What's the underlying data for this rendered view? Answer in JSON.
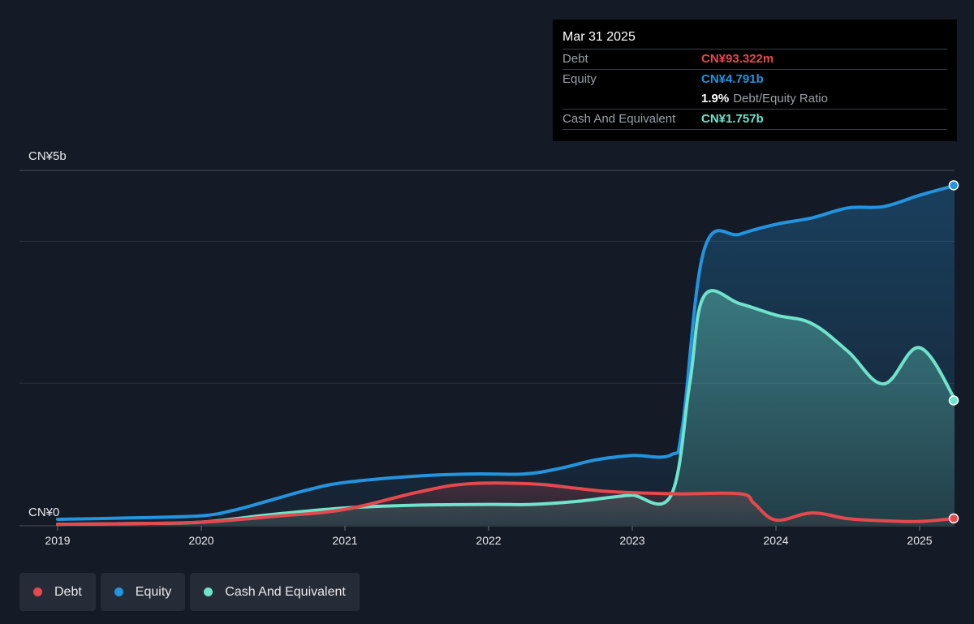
{
  "tooltip": {
    "date": "Mar 31 2025",
    "debt_label": "Debt",
    "debt_value": "CN¥93.322m",
    "equity_label": "Equity",
    "equity_value": "CN¥4.791b",
    "ratio_value": "1.9%",
    "ratio_label": "Debt/Equity Ratio",
    "cash_label": "Cash And Equivalent",
    "cash_value": "CN¥1.757b"
  },
  "legend": {
    "debt": "Debt",
    "equity": "Equity",
    "cash": "Cash And Equivalent"
  },
  "colors": {
    "debt": "#e5484d",
    "equity": "#2394df",
    "cash": "#6fe3cc",
    "background": "#151b26"
  },
  "chart_data": {
    "type": "area",
    "title": "",
    "xlabel": "",
    "ylabel": "",
    "ylim": [
      0,
      5
    ],
    "y_unit": "CN¥ billions",
    "y_tick_labels": [
      "CN¥0",
      "CN¥5b"
    ],
    "x_ticks": [
      2019,
      2020,
      2021,
      2022,
      2023,
      2024,
      2025
    ],
    "x_tick_labels": [
      "2019",
      "2020",
      "2021",
      "2022",
      "2023",
      "2024",
      "2025"
    ],
    "grid": true,
    "legend_position": "bottom-left",
    "series": [
      {
        "name": "Equity",
        "x": [
          2019.0,
          2019.5,
          2020.0,
          2020.25,
          2020.5,
          2020.75,
          2021.0,
          2021.5,
          2021.9,
          2022.25,
          2022.5,
          2022.75,
          2023.0,
          2023.27,
          2023.35,
          2023.5,
          2023.75,
          2024.0,
          2024.25,
          2024.5,
          2024.75,
          2025.0,
          2025.25
        ],
        "values": [
          0.08,
          0.1,
          0.13,
          0.22,
          0.36,
          0.5,
          0.6,
          0.69,
          0.72,
          0.72,
          0.8,
          0.92,
          0.98,
          0.99,
          1.4,
          3.88,
          4.1,
          4.24,
          4.33,
          4.47,
          4.49,
          4.65,
          4.79
        ]
      },
      {
        "name": "Debt",
        "x": [
          2019.0,
          2019.5,
          2020.0,
          2020.5,
          2021.0,
          2021.5,
          2021.85,
          2022.3,
          2022.6,
          2022.85,
          2023.3,
          2023.75,
          2023.85,
          2024.0,
          2024.25,
          2024.5,
          2024.75,
          2025.0,
          2025.25
        ],
        "values": [
          0.01,
          0.02,
          0.04,
          0.12,
          0.22,
          0.46,
          0.58,
          0.58,
          0.52,
          0.47,
          0.44,
          0.44,
          0.3,
          0.07,
          0.17,
          0.09,
          0.06,
          0.05,
          0.093
        ]
      },
      {
        "name": "Cash And Equivalent",
        "x": [
          2019.0,
          2019.5,
          2020.0,
          2020.5,
          2021.0,
          2021.5,
          2022.0,
          2022.3,
          2022.6,
          2022.85,
          2023.0,
          2023.27,
          2023.4,
          2023.5,
          2023.75,
          2024.0,
          2024.25,
          2024.5,
          2024.75,
          2025.0,
          2025.25
        ],
        "values": [
          0.01,
          0.02,
          0.04,
          0.15,
          0.24,
          0.28,
          0.29,
          0.29,
          0.33,
          0.39,
          0.42,
          0.42,
          2.0,
          3.23,
          3.12,
          2.96,
          2.84,
          2.45,
          1.99,
          2.5,
          1.757
        ]
      }
    ]
  }
}
